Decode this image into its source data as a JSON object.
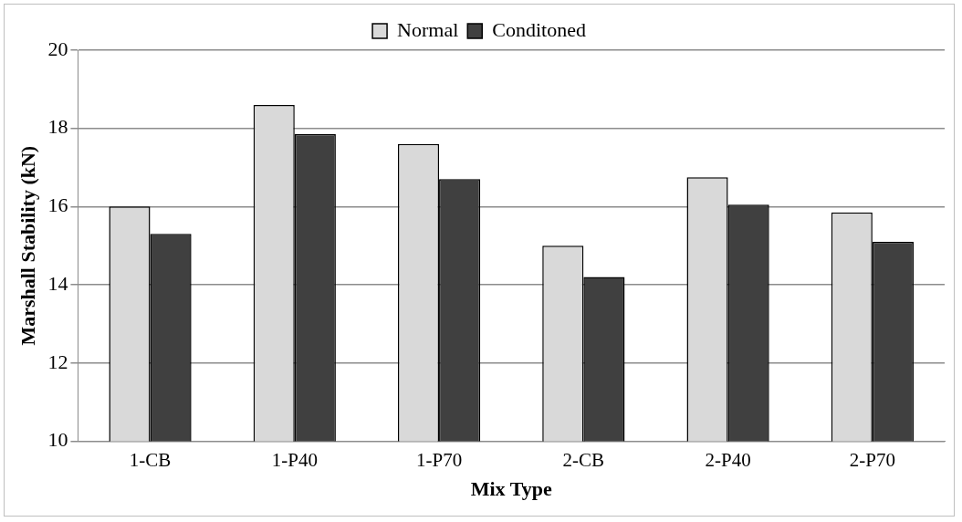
{
  "chart_data": {
    "type": "bar",
    "xlabel": "Mix Type",
    "ylabel": "Marshall Stability (kN)",
    "categories": [
      "1-CB",
      "1-P40",
      "1-P70",
      "2-CB",
      "2-P40",
      "2-P70"
    ],
    "series": [
      {
        "name": "Normal",
        "color": "#d9d9d9",
        "values": [
          16.0,
          18.6,
          17.6,
          15.0,
          16.75,
          15.85
        ]
      },
      {
        "name": "Conditoned",
        "color": "#404040",
        "values": [
          15.3,
          17.85,
          16.7,
          14.2,
          16.05,
          15.1
        ]
      }
    ],
    "ylim": [
      10,
      20
    ],
    "yticks": [
      10,
      12,
      14,
      16,
      18,
      20
    ],
    "grid": "y",
    "legend": "top"
  }
}
